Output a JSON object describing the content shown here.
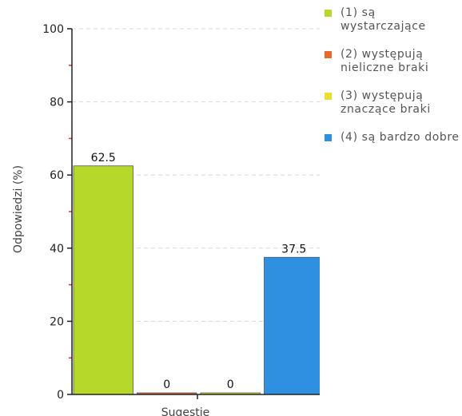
{
  "chart_data": {
    "type": "bar",
    "categories": [
      "Sugestie"
    ],
    "series": [
      {
        "name": "(1) są wystarczające",
        "values": [
          62.5
        ],
        "color": "#b5d82b"
      },
      {
        "name": "(2) występują nieliczne braki",
        "values": [
          0
        ],
        "color": "#e8692b"
      },
      {
        "name": "(3) występują znaczące braki",
        "values": [
          0
        ],
        "color": "#e9e02c"
      },
      {
        "name": "(4) są bardzo dobre",
        "values": [
          37.5
        ],
        "color": "#2f8fe0"
      }
    ],
    "data_labels": [
      "62.5",
      "0",
      "0",
      "37.5"
    ],
    "title": "",
    "xlabel": "Sugestie",
    "ylabel": "Odpowiedzi (%)",
    "ylim": [
      0,
      100
    ],
    "yticks": [
      "0",
      "20",
      "40",
      "60",
      "80",
      "100"
    ],
    "grid": true,
    "legend_position": "right"
  }
}
